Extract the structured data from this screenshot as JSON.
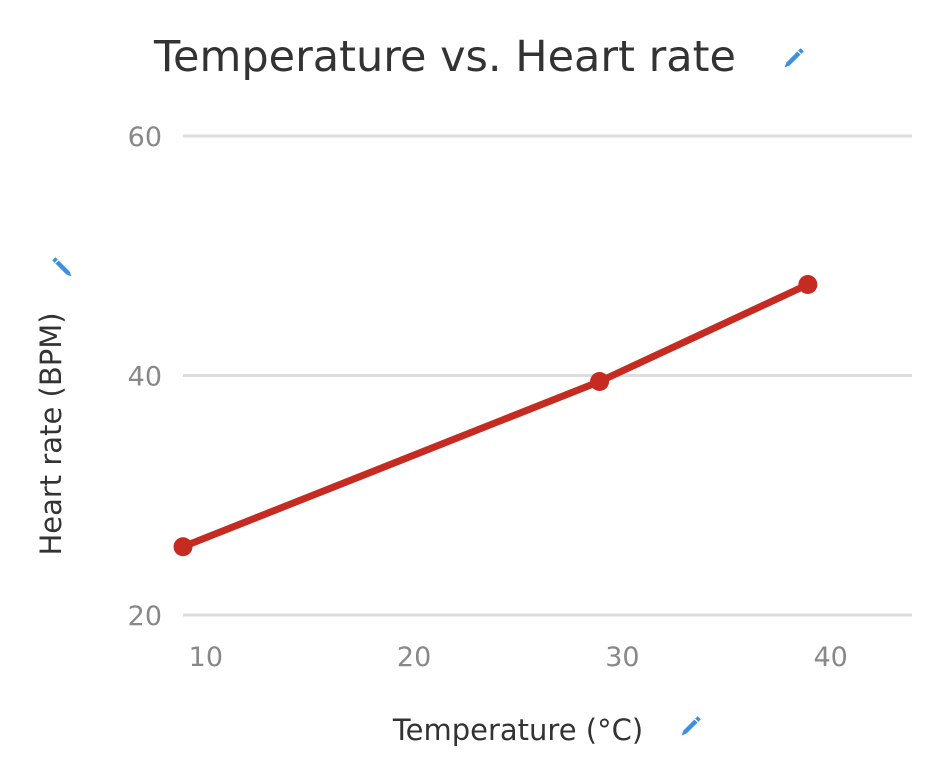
{
  "chart_data": {
    "type": "line",
    "title": "Temperature vs. Heart rate",
    "xlabel": "Temperature (°C)",
    "ylabel": "Heart rate (BPM)",
    "xlim": [
      9,
      44
    ],
    "ylim": [
      20,
      60
    ],
    "x_ticks": [
      10,
      20,
      30,
      40
    ],
    "y_ticks": [
      20,
      40,
      60
    ],
    "grid": true,
    "legend": "none",
    "series": [
      {
        "x": [
          9,
          29,
          39
        ],
        "y": [
          25.7,
          39.5,
          47.6
        ],
        "color": "#c62b22"
      }
    ]
  },
  "icons": {
    "title_edit": "pencil-icon",
    "ylabel_edit": "pencil-icon",
    "xlabel_edit": "pencil-icon"
  },
  "colors": {
    "line": "#c62b22",
    "grid": "#dddddd",
    "edit_icon": "#3d8fe0"
  }
}
